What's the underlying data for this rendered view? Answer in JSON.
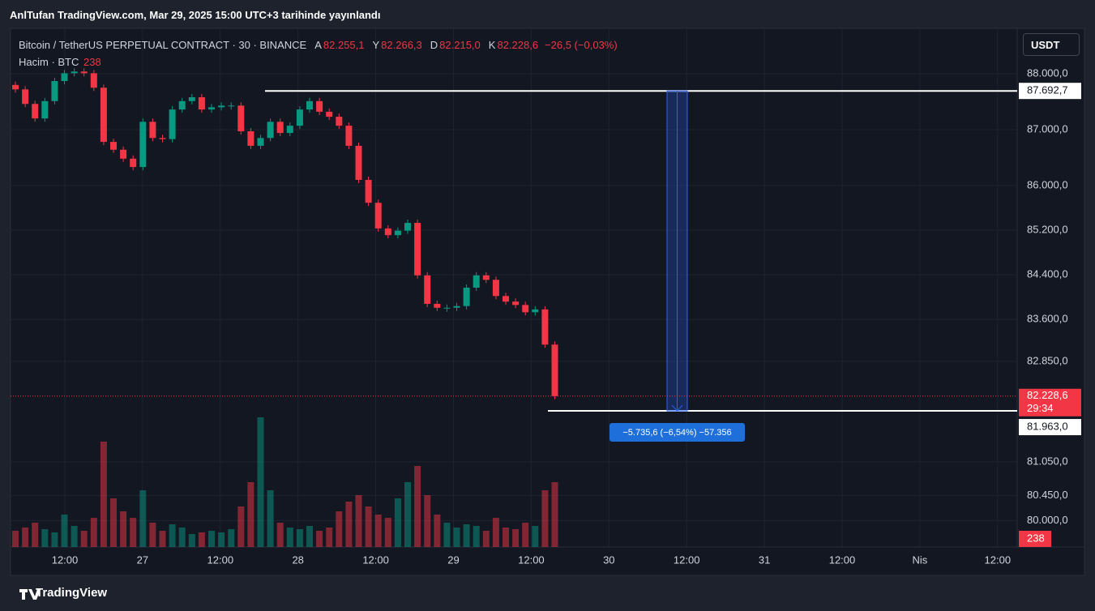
{
  "header": {
    "text": "AnlTufan TradingView.com, Mar 29, 2025 15:00 UTC+3 tarihinde yayınlandı"
  },
  "chart_data": {
    "type": "candlestick",
    "title": "Bitcoin / TetherUS PERPETUAL CONTRACT · 30 · BINANCE",
    "ohlc": [
      {
        "label": "A",
        "value": "82.255,1"
      },
      {
        "label": "Y",
        "value": "82.266,3"
      },
      {
        "label": "D",
        "value": "82.215,0"
      },
      {
        "label": "K",
        "value": "82.228,6"
      }
    ],
    "change": "−26,5 (−0,03%)",
    "volume_legend": {
      "label": "Hacim · BTC",
      "value": 238
    },
    "currency": "USDT",
    "up_color": "#089981",
    "down_color": "#f23645",
    "first_open": 87800,
    "close": [
      87720,
      87460,
      87200,
      87510,
      87870,
      88010,
      88040,
      88010,
      87750,
      86780,
      86640,
      86480,
      86330,
      87140,
      86850,
      86830,
      87360,
      87510,
      87580,
      87360,
      87400,
      87430,
      87430,
      86970,
      86710,
      86850,
      87140,
      86940,
      87070,
      87360,
      87510,
      87320,
      87230,
      87070,
      86710,
      86100,
      85690,
      85230,
      85110,
      85190,
      85330,
      84390,
      83880,
      83810,
      83810,
      83840,
      84170,
      84390,
      84310,
      84020,
      83920,
      83860,
      83730,
      83780,
      83150,
      82228.6
    ],
    "volume": [
      1000,
      1200,
      1500,
      1100,
      900,
      2000,
      1300,
      1000,
      1800,
      6500,
      3000,
      2200,
      1800,
      3500,
      1500,
      1000,
      1400,
      1200,
      800,
      900,
      1000,
      900,
      1100,
      2500,
      4000,
      8000,
      3500,
      1500,
      1200,
      1100,
      1300,
      1000,
      1200,
      2200,
      2800,
      3200,
      2500,
      2000,
      1800,
      3000,
      4000,
      5000,
      3200,
      2000,
      1500,
      1200,
      1400,
      1300,
      1000,
      1800,
      1200,
      1100,
      1500,
      1300,
      3500,
      4000
    ],
    "ylim": [
      79526,
      88813
    ],
    "yticks": [
      {
        "value": 88000,
        "label": "88.000,0"
      },
      {
        "value": 87000,
        "label": "87.000,0"
      },
      {
        "value": 86000,
        "label": "86.000,0"
      },
      {
        "value": 85200,
        "label": "85.200,0"
      },
      {
        "value": 84400,
        "label": "84.400,0"
      },
      {
        "value": 83600,
        "label": "83.600,0"
      },
      {
        "value": 82850,
        "label": "82.850,0"
      },
      {
        "value": 81050,
        "label": "81.050,0"
      },
      {
        "value": 80450,
        "label": "80.450,0"
      },
      {
        "value": 80000,
        "label": "80.000,0"
      }
    ],
    "x_labels": [
      "12:00",
      "27",
      "12:00",
      "28",
      "12:00",
      "29",
      "12:00",
      "30",
      "12:00",
      "31",
      "12:00",
      "Nis",
      "12:00"
    ],
    "current_price": {
      "value": 82228.6,
      "label": "82.228,6",
      "countdown": "29:34"
    },
    "levels": [
      {
        "value": 87692.7,
        "label": "87.692,7"
      },
      {
        "value": 81963.0,
        "label": "81.963,0"
      }
    ],
    "measure_label": "−5.735,6 (−6,54%) −57.356",
    "grid": true
  },
  "footer": {
    "brand": "TradingView"
  }
}
